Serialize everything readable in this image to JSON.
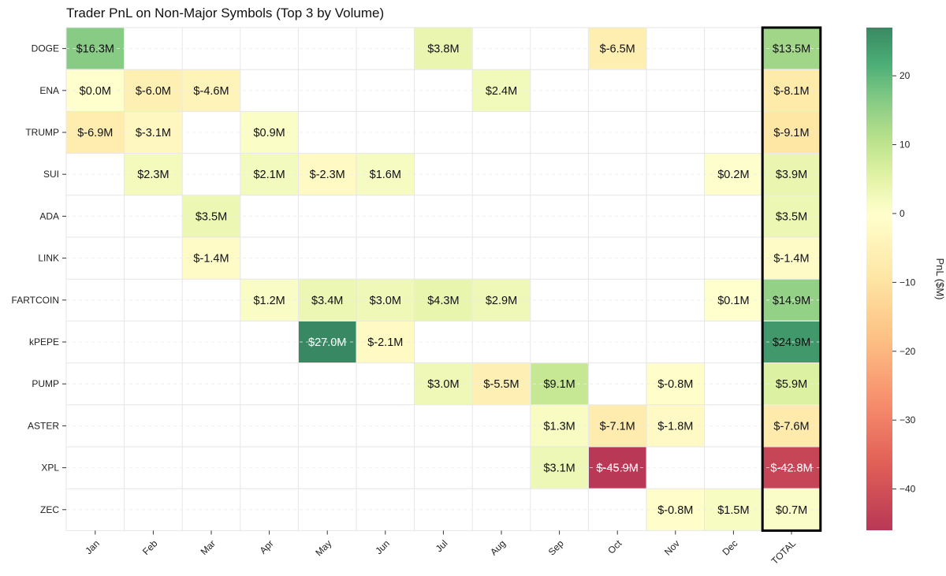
{
  "chart_data": {
    "type": "heatmap",
    "title": "Trader PnL on Non-Major Symbols (Top 3 by Volume)",
    "columns": [
      "Jan",
      "Feb",
      "Mar",
      "Apr",
      "May",
      "Jun",
      "Jul",
      "Aug",
      "Sep",
      "Oct",
      "Nov",
      "Dec",
      "TOTAL"
    ],
    "rows": [
      "DOGE",
      "ENA",
      "TRUMP",
      "SUI",
      "ADA",
      "LINK",
      "FARTCOIN",
      "kPEPE",
      "PUMP",
      "ASTER",
      "XPL",
      "ZEC"
    ],
    "values": [
      [
        16.3,
        null,
        null,
        null,
        null,
        null,
        3.8,
        null,
        null,
        -6.5,
        null,
        null,
        13.5
      ],
      [
        0.0,
        -6.0,
        -4.6,
        null,
        null,
        null,
        null,
        2.4,
        null,
        null,
        null,
        null,
        -8.1
      ],
      [
        -6.9,
        -3.1,
        null,
        0.9,
        null,
        null,
        null,
        null,
        null,
        null,
        null,
        null,
        -9.1
      ],
      [
        null,
        2.3,
        null,
        2.1,
        -2.3,
        1.6,
        null,
        null,
        null,
        null,
        null,
        0.2,
        3.9
      ],
      [
        null,
        null,
        3.5,
        null,
        null,
        null,
        null,
        null,
        null,
        null,
        null,
        null,
        3.5
      ],
      [
        null,
        null,
        -1.4,
        null,
        null,
        null,
        null,
        null,
        null,
        null,
        null,
        null,
        -1.4
      ],
      [
        null,
        null,
        null,
        1.2,
        3.4,
        3.0,
        4.3,
        2.9,
        null,
        null,
        null,
        0.1,
        14.9
      ],
      [
        null,
        null,
        null,
        null,
        27.0,
        -2.1,
        null,
        null,
        null,
        null,
        null,
        null,
        24.9
      ],
      [
        null,
        null,
        null,
        null,
        null,
        null,
        3.0,
        -5.5,
        9.1,
        null,
        -0.8,
        null,
        5.9
      ],
      [
        null,
        null,
        null,
        null,
        null,
        null,
        null,
        null,
        1.3,
        -7.1,
        -1.8,
        null,
        -7.6
      ],
      [
        null,
        null,
        null,
        null,
        null,
        null,
        null,
        null,
        3.1,
        -45.9,
        null,
        null,
        -42.8
      ],
      [
        null,
        null,
        null,
        null,
        null,
        null,
        null,
        null,
        null,
        null,
        -0.8,
        1.5,
        0.7
      ]
    ],
    "labels": [
      [
        "$16.3M",
        "",
        "",
        "",
        "",
        "",
        "$3.8M",
        "",
        "",
        "$-6.5M",
        "",
        "",
        "$13.5M"
      ],
      [
        "$0.0M",
        "$-6.0M",
        "$-4.6M",
        "",
        "",
        "",
        "",
        "$2.4M",
        "",
        "",
        "",
        "",
        "$-8.1M"
      ],
      [
        "$-6.9M",
        "$-3.1M",
        "",
        "$0.9M",
        "",
        "",
        "",
        "",
        "",
        "",
        "",
        "",
        "$-9.1M"
      ],
      [
        "",
        "$2.3M",
        "",
        "$2.1M",
        "$-2.3M",
        "$1.6M",
        "",
        "",
        "",
        "",
        "",
        "$0.2M",
        "$3.9M"
      ],
      [
        "",
        "",
        "$3.5M",
        "",
        "",
        "",
        "",
        "",
        "",
        "",
        "",
        "",
        "$3.5M"
      ],
      [
        "",
        "",
        "$-1.4M",
        "",
        "",
        "",
        "",
        "",
        "",
        "",
        "",
        "",
        "$-1.4M"
      ],
      [
        "",
        "",
        "",
        "$1.2M",
        "$3.4M",
        "$3.0M",
        "$4.3M",
        "$2.9M",
        "",
        "",
        "",
        "$0.1M",
        "$14.9M"
      ],
      [
        "",
        "",
        "",
        "",
        "$27.0M",
        "$-2.1M",
        "",
        "",
        "",
        "",
        "",
        "",
        "$24.9M"
      ],
      [
        "",
        "",
        "",
        "",
        "",
        "",
        "$3.0M",
        "$-5.5M",
        "$9.1M",
        "",
        "$-0.8M",
        "",
        "$5.9M"
      ],
      [
        "",
        "",
        "",
        "",
        "",
        "",
        "",
        "",
        "$1.3M",
        "$-7.1M",
        "$-1.8M",
        "",
        "$-7.6M"
      ],
      [
        "",
        "",
        "",
        "",
        "",
        "",
        "",
        "",
        "$3.1M",
        "$-45.9M",
        "",
        "",
        "$-42.8M"
      ],
      [
        "",
        "",
        "",
        "",
        "",
        "",
        "",
        "",
        "",
        "",
        "$-0.8M",
        "$1.5M",
        "$0.7M"
      ]
    ],
    "colorscale": "RdYlGn",
    "vmin": -45.9,
    "vmax": 27.0,
    "highlighted_column": "TOTAL",
    "grid": true,
    "colorbar": {
      "label": "PnL ($M)",
      "ticks": [
        20,
        10,
        0,
        -10,
        -20,
        -30,
        -40
      ],
      "tick_labels": [
        "20",
        "10",
        "0",
        "−10",
        "−20",
        "−30",
        "−40"
      ]
    }
  }
}
